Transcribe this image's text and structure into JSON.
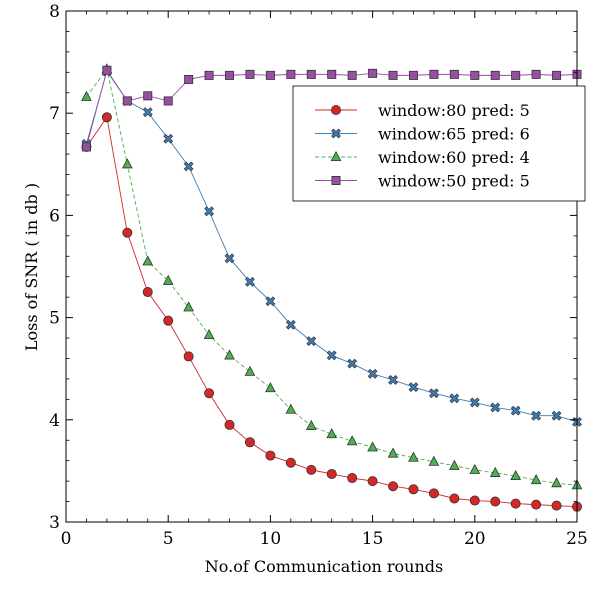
{
  "chart_data": {
    "type": "line",
    "xlabel": "No.of Communication rounds",
    "ylabel": "Loss of SNR ( in db )",
    "xlim": [
      0,
      25
    ],
    "ylim": [
      3,
      8
    ],
    "xticks": [
      0,
      5,
      10,
      15,
      20,
      25
    ],
    "yticks": [
      3,
      4,
      5,
      6,
      7,
      8
    ],
    "grid": false,
    "legend_position": "upper-right",
    "x": [
      1,
      2,
      3,
      4,
      5,
      6,
      7,
      8,
      9,
      10,
      11,
      12,
      13,
      14,
      15,
      16,
      17,
      18,
      19,
      20,
      21,
      22,
      23,
      24,
      25
    ],
    "series": [
      {
        "name": "window:80 pred: 5",
        "marker": "circle",
        "color": "#d62728",
        "dash": "solid",
        "values": [
          6.67,
          6.96,
          5.83,
          5.25,
          4.97,
          4.62,
          4.26,
          3.95,
          3.78,
          3.65,
          3.58,
          3.51,
          3.47,
          3.43,
          3.4,
          3.35,
          3.32,
          3.28,
          3.23,
          3.21,
          3.2,
          3.18,
          3.17,
          3.16,
          3.15
        ]
      },
      {
        "name": "window:65 pred: 6",
        "marker": "x",
        "color": "#3d7eb8",
        "dash": "solid",
        "values": [
          6.7,
          7.41,
          7.12,
          7.01,
          6.75,
          6.48,
          6.04,
          5.58,
          5.35,
          5.16,
          4.93,
          4.77,
          4.63,
          4.55,
          4.45,
          4.39,
          4.32,
          4.26,
          4.21,
          4.17,
          4.12,
          4.09,
          4.04,
          4.04,
          3.98
        ]
      },
      {
        "name": "window:60 pred: 4",
        "marker": "triangle",
        "color": "#4caf50",
        "dash": "dashed",
        "values": [
          7.16,
          7.43,
          6.5,
          5.55,
          5.36,
          5.1,
          4.83,
          4.63,
          4.47,
          4.31,
          4.1,
          3.94,
          3.86,
          3.79,
          3.73,
          3.67,
          3.63,
          3.59,
          3.55,
          3.51,
          3.48,
          3.45,
          3.41,
          3.38,
          3.36
        ]
      },
      {
        "name": "window:50 pred: 5",
        "marker": "square",
        "color": "#984ea3",
        "dash": "solid",
        "values": [
          6.67,
          7.42,
          7.12,
          7.17,
          7.12,
          7.33,
          7.37,
          7.37,
          7.38,
          7.37,
          7.38,
          7.38,
          7.38,
          7.37,
          7.39,
          7.37,
          7.37,
          7.38,
          7.38,
          7.37,
          7.37,
          7.37,
          7.38,
          7.37,
          7.38
        ]
      }
    ]
  }
}
